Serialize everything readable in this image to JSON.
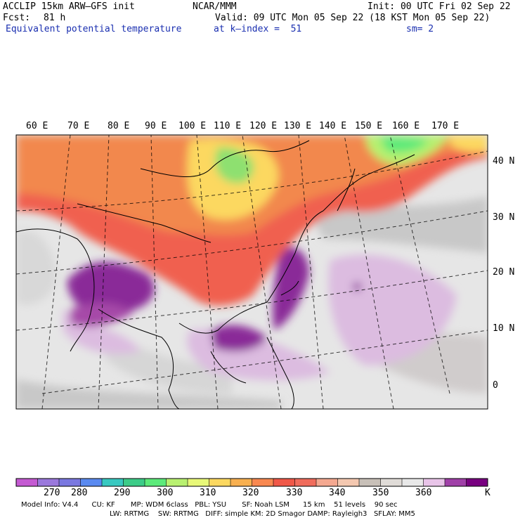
{
  "header": {
    "model_line": "ACCLIP 15km ARW–GFS init",
    "org": "NCAR/MMM",
    "init": "Init: 00 UTC Fri 02 Sep 22",
    "fcst_label": "Fcst:",
    "fcst_value": "81 h",
    "valid": "Valid: 09 UTC Mon 05 Sep 22 (18 KST Mon 05 Sep 22)",
    "field": "Equivalent potential temperature",
    "level": "at k–index =  51",
    "smoothing": "sm= 2"
  },
  "map": {
    "lon_labels": [
      "60 E",
      "70 E",
      "80 E",
      "90 E",
      "100 E",
      "110 E",
      "120 E",
      "130 E",
      "140 E",
      "150 E",
      "160 E",
      "170 E"
    ],
    "lat_labels": [
      "40 N",
      "30 N",
      "20 N",
      "10 N",
      "0"
    ]
  },
  "colorbar": {
    "colors": [
      "#c45ad2",
      "#9a78dc",
      "#7a78e0",
      "#5a8af0",
      "#38c8c0",
      "#3ccc88",
      "#5cea7a",
      "#b8f070",
      "#e8f878",
      "#fcd860",
      "#f8b050",
      "#f88850",
      "#f05848",
      "#f06c5c",
      "#f4a890",
      "#f4c8b0",
      "#c8c0b8",
      "#e0dcd8",
      "#e8e8e8",
      "#e8c4e8",
      "#a040a8",
      "#780080"
    ],
    "ticks": [
      "270",
      "280",
      "290",
      "300",
      "310",
      "320",
      "330",
      "340",
      "350",
      "360"
    ],
    "unit": "K"
  },
  "footer": {
    "line1": "Model Info: V4.4      CU: KF       MP: WDM 6class   PBL: YSU       SF: Noah LSM      15 km    51 levels    90 sec",
    "line2": "LW: RRTMG    SW: RRTMG   DIFF: simple KM: 2D Smagor DAMP: Rayleigh3   SFLAY: MM5"
  }
}
